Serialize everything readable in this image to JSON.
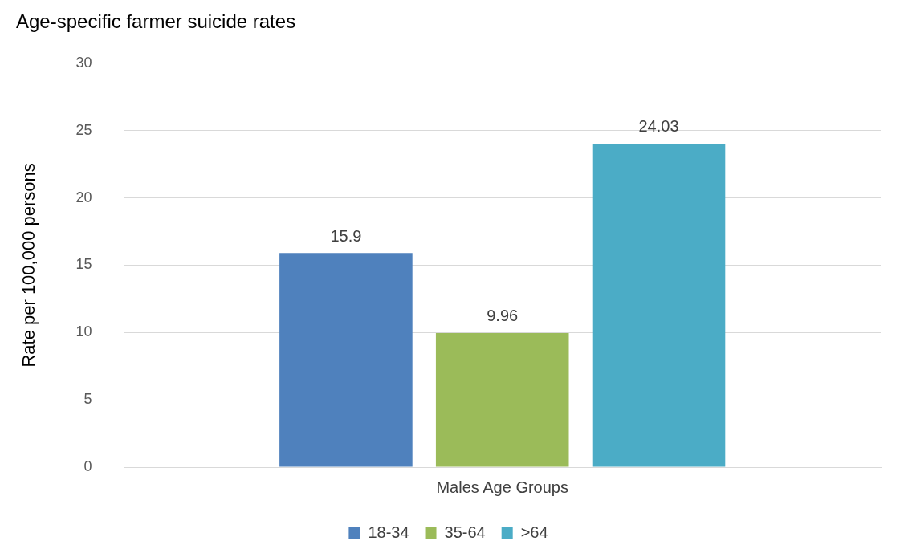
{
  "chart_data": {
    "type": "bar",
    "title": "Age-specific farmer suicide rates",
    "ylabel": "Rate per 100,000 persons",
    "categories": [
      "Males Age Groups"
    ],
    "series": [
      {
        "name": "18-34",
        "color": "#4f81bd",
        "values": [
          15.9
        ]
      },
      {
        "name": "35-64",
        "color": "#9bbb59",
        "values": [
          9.96
        ]
      },
      {
        "name": ">64",
        "color": "#4bacc6",
        "values": [
          24.03
        ]
      }
    ],
    "ylim": [
      0,
      30
    ],
    "yticks": [
      0,
      5,
      10,
      15,
      20,
      25,
      30
    ],
    "grid": "y",
    "legend": "bottom",
    "data_labels": true
  }
}
